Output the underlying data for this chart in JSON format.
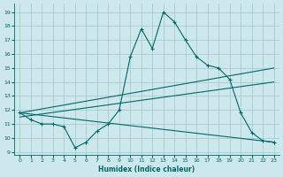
{
  "xlabel": "Humidex (Indice chaleur)",
  "bg_color": "#cce8ec",
  "grid_color": "#aacccc",
  "line_color": "#006868",
  "xlim": [
    -0.5,
    23.5
  ],
  "ylim": [
    8.8,
    19.6
  ],
  "yticks": [
    9,
    10,
    11,
    12,
    13,
    14,
    15,
    16,
    17,
    18,
    19
  ],
  "xticks": [
    0,
    1,
    2,
    3,
    4,
    5,
    6,
    7,
    8,
    9,
    10,
    11,
    12,
    13,
    14,
    15,
    16,
    17,
    18,
    19,
    20,
    21,
    22,
    23
  ],
  "main_x": [
    0,
    1,
    2,
    3,
    4,
    5,
    6,
    7,
    8,
    9,
    10,
    11,
    12,
    13,
    14,
    15,
    16,
    17,
    18,
    19,
    20,
    21,
    22,
    23
  ],
  "main_y": [
    11.8,
    11.3,
    11.0,
    11.0,
    10.8,
    9.3,
    9.7,
    10.5,
    11.0,
    12.0,
    15.8,
    17.8,
    16.4,
    19.0,
    18.3,
    17.0,
    15.8,
    15.2,
    15.0,
    14.2,
    11.8,
    10.4,
    9.8,
    9.7
  ],
  "line2_x": [
    0,
    23
  ],
  "line2_y": [
    11.8,
    15.0
  ],
  "line3_x": [
    0,
    23
  ],
  "line3_y": [
    11.5,
    14.0
  ],
  "line4_x": [
    0,
    23
  ],
  "line4_y": [
    11.8,
    9.7
  ]
}
